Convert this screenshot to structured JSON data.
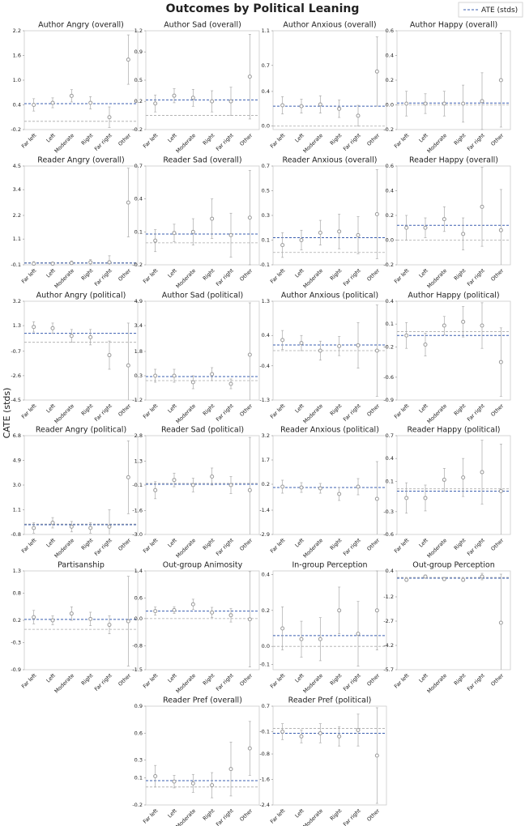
{
  "figure": {
    "title": "Outcomes by Political Leaning",
    "y_label": "CATE (stds)",
    "legend_label": "ATE (stds)",
    "point_color": "#999999",
    "ate_color": "#3b5fb0",
    "zero_color": "#aaaaaa"
  },
  "chart_data": [
    {
      "type": "errorbar",
      "title": "Author Angry (overall)",
      "categories": [
        "Far left",
        "Left",
        "Moderate",
        "Right",
        "Far right",
        "Other"
      ],
      "values": [
        0.4,
        0.45,
        0.62,
        0.45,
        0.1,
        1.5
      ],
      "errors": [
        0.15,
        0.12,
        0.15,
        0.15,
        0.25,
        0.6
      ],
      "ate": 0.43,
      "ylim": [
        -0.2,
        2.2
      ],
      "yticks": [
        -0.2,
        0.4,
        {
          "value": 1,
          "label": "1.0"
        },
        1.6,
        2.2
      ]
    },
    {
      "type": "errorbar",
      "title": "Author Sad (overall)",
      "categories": [
        "Far left",
        "Left",
        "Moderate",
        "Right",
        "Far right",
        "Other"
      ],
      "values": [
        0.17,
        0.28,
        0.25,
        0.2,
        0.2,
        0.55
      ],
      "errors": [
        0.12,
        0.1,
        0.12,
        0.15,
        0.2,
        0.6
      ],
      "ate": 0.22,
      "ylim": [
        -0.2,
        1.2
      ],
      "yticks": [
        -0.2,
        0.2,
        0.5,
        0.9,
        1.2
      ]
    },
    {
      "type": "errorbar",
      "title": "Author Anxious (overall)",
      "categories": [
        "Far left",
        "Left",
        "Moderate",
        "Right",
        "Far right",
        "Other"
      ],
      "values": [
        0.24,
        0.23,
        0.25,
        0.2,
        0.12,
        0.63
      ],
      "errors": [
        0.1,
        0.08,
        0.1,
        0.1,
        0.12,
        0.4
      ],
      "ate": 0.23,
      "ylim": [
        -0.04,
        1.1
      ],
      "yticks": [
        {
          "value": 0,
          "label": "0.0"
        },
        0.4,
        0.7,
        1.1
      ]
    },
    {
      "type": "errorbar",
      "title": "Author Happy (overall)",
      "categories": [
        "Far left",
        "Left",
        "Moderate",
        "Right",
        "Far right",
        "Other"
      ],
      "values": [
        0.01,
        0.01,
        0.01,
        0.01,
        0.03,
        0.2
      ],
      "errors": [
        0.1,
        0.08,
        0.1,
        0.15,
        0.23,
        0.38
      ],
      "ate": 0.015,
      "ylim": [
        -0.2,
        0.6
      ],
      "yticks": [
        -0.2,
        {
          "value": 0,
          "label": "0.0"
        },
        0.2,
        0.4,
        0.6
      ]
    },
    {
      "type": "errorbar",
      "title": "Reader Angry (overall)",
      "categories": [
        "Far left",
        "Left",
        "Moderate",
        "Right",
        "Far right",
        "Other"
      ],
      "values": [
        -0.05,
        -0.05,
        -0.02,
        0.02,
        0.02,
        2.8
      ],
      "errors": [
        0.1,
        0.08,
        0.1,
        0.12,
        0.3,
        1.6
      ],
      "ate": -0.02,
      "ylim": [
        -0.1,
        4.5
      ],
      "yticks": [
        -0.1,
        1.1,
        2.2,
        3.4,
        4.5
      ]
    },
    {
      "type": "errorbar",
      "title": "Reader Sad (overall)",
      "categories": [
        "Far left",
        "Left",
        "Moderate",
        "Right",
        "Far right",
        "Other"
      ],
      "values": [
        0.02,
        0.09,
        0.1,
        0.22,
        0.07,
        0.23
      ],
      "errors": [
        0.1,
        0.08,
        0.12,
        0.18,
        0.2,
        0.43
      ],
      "ate": 0.08,
      "ylim": [
        -0.2,
        0.7
      ],
      "yticks": [
        -0.2,
        0.1,
        0.4,
        0.7
      ]
    },
    {
      "type": "errorbar",
      "title": "Reader Anxious (overall)",
      "categories": [
        "Far left",
        "Left",
        "Moderate",
        "Right",
        "Far right",
        "Other"
      ],
      "values": [
        0.06,
        0.1,
        0.16,
        0.17,
        0.14,
        0.31
      ],
      "errors": [
        0.1,
        0.08,
        0.1,
        0.14,
        0.15,
        0.36
      ],
      "ate": 0.12,
      "ylim": [
        -0.1,
        0.7
      ],
      "yticks": [
        -0.1,
        0.1,
        0.3,
        0.5,
        0.7
      ]
    },
    {
      "type": "errorbar",
      "title": "Reader Happy (overall)",
      "categories": [
        "Far left",
        "Left",
        "Moderate",
        "Right",
        "Far right",
        "Other"
      ],
      "values": [
        0.1,
        0.1,
        0.17,
        0.05,
        0.27,
        0.08
      ],
      "errors": [
        0.1,
        0.08,
        0.1,
        0.13,
        0.32,
        0.33
      ],
      "ate": 0.12,
      "ylim": [
        -0.2,
        0.6
      ],
      "yticks": [
        -0.2,
        {
          "value": 0,
          "label": "0.0"
        },
        0.2,
        0.4,
        0.6
      ]
    },
    {
      "type": "errorbar",
      "title": "Author Angry (political)",
      "categories": [
        "Far left",
        "Left",
        "Moderate",
        "Right",
        "Far right",
        "Other"
      ],
      "values": [
        1.2,
        1.1,
        0.5,
        0.4,
        -1.0,
        -1.8
      ],
      "errors": [
        0.4,
        0.4,
        0.5,
        0.6,
        1.1,
        3.3
      ],
      "ate": 0.7,
      "ylim": [
        -4.5,
        3.2
      ],
      "yticks": [
        -4.5,
        -2.6,
        -0.7,
        1.3,
        3.2
      ]
    },
    {
      "type": "errorbar",
      "title": "Author Sad (political)",
      "categories": [
        "Far left",
        "Left",
        "Moderate",
        "Right",
        "Far right",
        "Other"
      ],
      "values": [
        0.3,
        0.3,
        -0.1,
        0.4,
        -0.2,
        1.6
      ],
      "errors": [
        0.4,
        0.4,
        0.4,
        0.4,
        0.3,
        3.2
      ],
      "ate": 0.25,
      "ylim": [
        -1.2,
        4.9
      ],
      "yticks": [
        -1.2,
        0.3,
        1.8,
        3.4,
        4.9
      ]
    },
    {
      "type": "errorbar",
      "title": "Author Anxious (political)",
      "categories": [
        "Far left",
        "Left",
        "Moderate",
        "Right",
        "Far right",
        "Other"
      ],
      "values": [
        0.28,
        0.2,
        0.0,
        0.12,
        0.14,
        0.0
      ],
      "errors": [
        0.25,
        0.2,
        0.25,
        0.25,
        0.6,
        1.2
      ],
      "ate": 0.15,
      "ylim": [
        -1.3,
        1.3
      ],
      "yticks": [
        -1.3,
        -0.4,
        0.4,
        1.3
      ]
    },
    {
      "type": "errorbar",
      "title": "Author Happy (political)",
      "categories": [
        "Far left",
        "Left",
        "Moderate",
        "Right",
        "Far right",
        "Other"
      ],
      "values": [
        -0.05,
        -0.17,
        0.08,
        0.13,
        0.08,
        -0.4
      ],
      "errors": [
        0.17,
        0.15,
        0.12,
        0.2,
        0.3,
        0.45
      ],
      "ate": -0.05,
      "ylim": [
        -0.9,
        0.4
      ],
      "yticks": [
        -0.9,
        -0.6,
        -0.2,
        0.1,
        0.4
      ]
    },
    {
      "type": "errorbar",
      "title": "Reader Angry (political)",
      "categories": [
        "Far left",
        "Left",
        "Moderate",
        "Right",
        "Far right",
        "Other"
      ],
      "values": [
        -0.3,
        0.1,
        -0.2,
        -0.3,
        -0.2,
        3.6
      ],
      "errors": [
        0.4,
        0.4,
        0.4,
        0.4,
        1.3,
        2.8
      ],
      "ate": -0.05,
      "ylim": [
        -0.8,
        6.8
      ],
      "yticks": [
        -0.8,
        1.1,
        {
          "value": 3,
          "label": "3.0"
        },
        4.9,
        6.8
      ]
    },
    {
      "type": "errorbar",
      "title": "Reader Sad (political)",
      "categories": [
        "Far left",
        "Left",
        "Moderate",
        "Right",
        "Far right",
        "Other"
      ],
      "values": [
        -0.4,
        0.2,
        -0.1,
        0.4,
        -0.1,
        -0.4
      ],
      "errors": [
        0.5,
        0.4,
        0.4,
        0.5,
        0.5,
        3.1
      ],
      "ate": -0.05,
      "ylim": [
        -3,
        2.8
      ],
      "yticks": [
        {
          "value": -3,
          "label": "-3.0"
        },
        -1.6,
        -0.1,
        1.3,
        2.8
      ]
    },
    {
      "type": "errorbar",
      "title": "Reader Anxious (political)",
      "categories": [
        "Far left",
        "Left",
        "Moderate",
        "Right",
        "Far right",
        "Other"
      ],
      "values": [
        0.05,
        0.0,
        -0.05,
        -0.4,
        0.05,
        -0.7
      ],
      "errors": [
        0.4,
        0.3,
        0.3,
        0.4,
        0.5,
        2.3
      ],
      "ate": 0.0,
      "ylim": [
        -2.9,
        3.2
      ],
      "yticks": [
        -2.9,
        -1.4,
        0.2,
        1.7,
        3.2
      ]
    },
    {
      "type": "errorbar",
      "title": "Reader Happy (political)",
      "categories": [
        "Far left",
        "Left",
        "Moderate",
        "Right",
        "Far right",
        "Other"
      ],
      "values": [
        -0.12,
        -0.12,
        0.12,
        0.15,
        0.22,
        -0.03
      ],
      "errors": [
        0.2,
        0.17,
        0.15,
        0.25,
        0.42,
        0.62
      ],
      "ate": -0.03,
      "ylim": [
        -0.6,
        0.7
      ],
      "yticks": [
        -0.6,
        -0.3,
        0.1,
        0.4,
        0.7
      ]
    },
    {
      "type": "errorbar",
      "title": "Partisanship",
      "categories": [
        "Far left",
        "Left",
        "Moderate",
        "Right",
        "Far right",
        "Other"
      ],
      "values": [
        0.27,
        0.2,
        0.35,
        0.23,
        0.1,
        0.18
      ],
      "errors": [
        0.15,
        0.1,
        0.15,
        0.15,
        0.2,
        1.0
      ],
      "ate": 0.22,
      "ylim": [
        -0.9,
        1.3
      ],
      "yticks": [
        -0.9,
        -0.3,
        0.2,
        0.8,
        1.3
      ]
    },
    {
      "type": "errorbar",
      "title": "Out-group Animosity",
      "categories": [
        "Far left",
        "Left",
        "Moderate",
        "Right",
        "Far right",
        "Other"
      ],
      "values": [
        0.22,
        0.25,
        0.42,
        0.18,
        0.1,
        -0.02
      ],
      "errors": [
        0.12,
        0.1,
        0.15,
        0.15,
        0.2,
        1.4
      ],
      "ate": 0.22,
      "ylim": [
        -1.5,
        1.4
      ],
      "yticks": [
        -1.5,
        -0.8,
        {
          "value": 0,
          "label": "0.0"
        },
        0.6,
        1.4
      ]
    },
    {
      "type": "errorbar",
      "title": "In-group Perception",
      "categories": [
        "Far left",
        "Left",
        "Moderate",
        "Right",
        "Far right",
        "Other"
      ],
      "values": [
        0.1,
        0.04,
        0.04,
        0.2,
        0.07,
        0.2
      ],
      "errors": [
        0.12,
        0.1,
        0.12,
        0.13,
        0.18,
        0.22
      ],
      "ate": 0.06,
      "ylim": [
        -0.13,
        0.42
      ],
      "yticks": [
        -0.1,
        {
          "value": 0,
          "label": "0.0"
        },
        0.2,
        0.4
      ]
    },
    {
      "type": "errorbar",
      "title": "Out-group Perception",
      "categories": [
        "Far left",
        "Left",
        "Moderate",
        "Right",
        "Far right",
        "Other"
      ],
      "values": [
        -0.15,
        0.05,
        -0.1,
        -0.15,
        0.05,
        -2.8
      ],
      "errors": [
        0.1,
        0.1,
        0.1,
        0.1,
        0.2,
        3.0
      ],
      "ate": -0.05,
      "ylim": [
        -5.7,
        0.4
      ],
      "yticks": [
        -5.7,
        -4.2,
        -2.7,
        -1.2,
        0.4
      ]
    },
    {
      "type": "errorbar",
      "title": "Reader Pref (overall)",
      "categories": [
        "Far left",
        "Left",
        "Moderate",
        "Right",
        "Far right",
        "Other"
      ],
      "values": [
        0.12,
        0.06,
        0.04,
        0.02,
        0.2,
        0.43
      ],
      "errors": [
        0.12,
        0.07,
        0.1,
        0.14,
        0.3,
        0.3
      ],
      "ate": 0.07,
      "ylim": [
        -0.2,
        0.9
      ],
      "yticks": [
        -0.2,
        0.1,
        0.3,
        0.6,
        0.9
      ]
    },
    {
      "type": "errorbar",
      "title": "Reader Pref (political)",
      "categories": [
        "Far left",
        "Left",
        "Moderate",
        "Right",
        "Far right",
        "Other"
      ],
      "values": [
        -0.1,
        -0.25,
        -0.15,
        -0.25,
        -0.05,
        -0.85
      ],
      "errors": [
        0.25,
        0.2,
        0.3,
        0.3,
        0.5,
        1.5
      ],
      "ate": -0.15,
      "ylim": [
        -2.4,
        0.7
      ],
      "yticks": [
        -2.4,
        -1.6,
        -0.8,
        -0.1,
        0.7
      ]
    }
  ]
}
